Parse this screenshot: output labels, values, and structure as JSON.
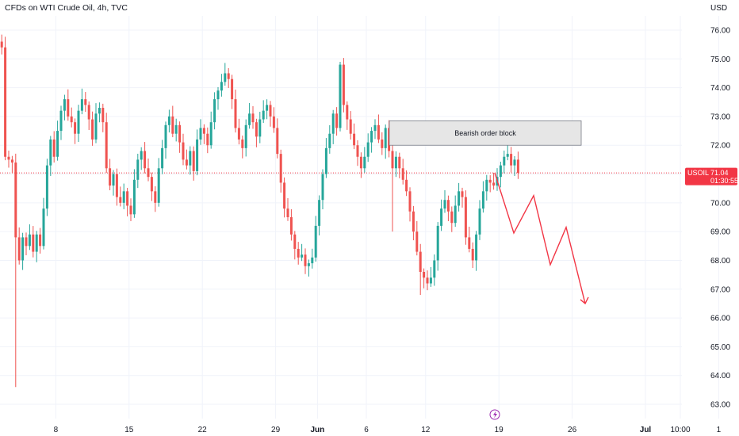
{
  "header": {
    "title": "CFDs on WTI Crude Oil, 4h, TVC",
    "currency": "USD"
  },
  "colors": {
    "up": "#26a69a",
    "down": "#ef5350",
    "projection": "#f23645",
    "badge": "#f23645",
    "grid": "#f0f3fa",
    "current_line": "#f23645"
  },
  "chart_data": {
    "type": "candlestick",
    "symbol": "USOIL",
    "interval": "4h",
    "y_range": [
      62.6,
      76.6
    ],
    "y_ticks": [
      "76.00",
      "75.00",
      "74.00",
      "73.00",
      "72.00",
      "71.00",
      "70.00",
      "69.00",
      "68.00",
      "67.00",
      "66.00",
      "65.00",
      "64.00",
      "63.00"
    ],
    "x_ticks": [
      {
        "label": "8",
        "bar": 16,
        "bold": false
      },
      {
        "label": "15",
        "bar": 37,
        "bold": false
      },
      {
        "label": "22",
        "bar": 58,
        "bold": false
      },
      {
        "label": "29",
        "bar": 79,
        "bold": false
      },
      {
        "label": "Jun",
        "bar": 91,
        "bold": true
      },
      {
        "label": "6",
        "bar": 105,
        "bold": false
      },
      {
        "label": "12",
        "bar": 122,
        "bold": false
      },
      {
        "label": "19",
        "bar": 143,
        "bold": false
      },
      {
        "label": "26",
        "bar": 164,
        "bold": false
      },
      {
        "label": "Jul",
        "bar": 185,
        "bold": true
      },
      {
        "label": "10:00",
        "bar": 195,
        "bold": false
      },
      {
        "label": "1",
        "bar": 206,
        "bold": false
      }
    ],
    "current_price": "71.04",
    "countdown": "01:30:55",
    "closes": [
      75.4,
      71.6,
      71.5,
      71.4,
      68.8,
      68.0,
      68.8,
      68.5,
      68.9,
      68.3,
      68.9,
      68.5,
      69.8,
      71.3,
      72.2,
      71.6,
      72.5,
      73.2,
      73.6,
      73.0,
      72.8,
      72.4,
      73.2,
      73.6,
      73.4,
      72.9,
      72.2,
      73.1,
      73.3,
      72.8,
      71.2,
      70.6,
      71.0,
      70.2,
      70.0,
      70.4,
      69.9,
      69.6,
      70.8,
      71.5,
      71.8,
      71.2,
      70.9,
      70.4,
      70.0,
      71.2,
      71.9,
      72.7,
      73.0,
      72.4,
      72.7,
      72.1,
      71.5,
      71.3,
      71.8,
      71.1,
      72.2,
      72.6,
      72.4,
      72.0,
      72.8,
      73.6,
      73.9,
      74.2,
      74.5,
      74.3,
      73.6,
      72.6,
      72.2,
      71.9,
      72.7,
      73.1,
      72.8,
      72.3,
      72.9,
      73.2,
      73.4,
      73.0,
      72.6,
      71.7,
      70.7,
      69.8,
      69.5,
      68.9,
      68.4,
      68.1,
      68.2,
      67.8,
      67.9,
      68.1,
      69.2,
      70.1,
      71.0,
      71.9,
      72.4,
      73.1,
      72.6,
      74.8,
      73.4,
      72.9,
      72.4,
      72.0,
      71.6,
      71.2,
      71.6,
      72.1,
      72.5,
      72.7,
      72.2,
      71.9,
      72.6,
      71.8,
      71.2,
      71.6,
      71.2,
      70.8,
      70.4,
      69.7,
      69.0,
      68.3,
      67.6,
      67.4,
      67.2,
      67.4,
      68.0,
      69.2,
      69.8,
      70.1,
      69.7,
      69.3,
      69.9,
      70.4,
      70.2,
      68.8,
      68.4,
      68.0,
      68.9,
      69.8,
      70.4,
      70.8,
      70.7,
      70.6,
      70.9,
      71.3,
      71.6,
      71.7,
      71.3,
      71.5,
      71.04
    ],
    "projection": [
      {
        "bar": 148,
        "price": 71.04
      },
      {
        "bar": 154,
        "price": 68.95
      },
      {
        "bar": 160,
        "price": 70.25
      },
      {
        "bar": 166,
        "price": 67.85
      },
      {
        "bar": 171,
        "price": 69.15
      },
      {
        "bar": 177,
        "price": 66.5
      }
    ],
    "order_block": {
      "label": "Bearish order block",
      "bar_start": 117,
      "bar_end": 174,
      "price_high": 72.85,
      "price_low": 72.0
    }
  }
}
